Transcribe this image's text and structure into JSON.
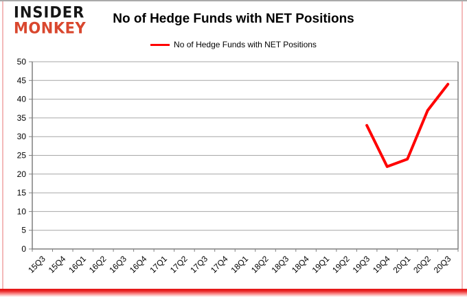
{
  "brand": {
    "name_line1": "INSIDER",
    "name_line2": "MONKEY",
    "monkey_color": "#d9472e"
  },
  "title": "No of Hedge Funds with NET Positions",
  "legend": {
    "label": "No of Hedge Funds with NET Positions",
    "color": "#ff0000"
  },
  "chart_data": {
    "type": "line",
    "title": "No of Hedge Funds with NET Positions",
    "categories": [
      "15Q3",
      "15Q4",
      "16Q1",
      "16Q2",
      "16Q3",
      "16Q4",
      "17Q1",
      "17Q2",
      "17Q3",
      "17Q4",
      "18Q1",
      "18Q2",
      "18Q3",
      "18Q4",
      "19Q1",
      "19Q2",
      "19Q3",
      "19Q4",
      "20Q1",
      "20Q2",
      "20Q3"
    ],
    "series": [
      {
        "name": "No of Hedge Funds with NET Positions",
        "color": "#ff0000",
        "values": [
          null,
          null,
          null,
          null,
          null,
          null,
          null,
          null,
          null,
          null,
          null,
          null,
          null,
          null,
          null,
          null,
          33,
          22,
          24,
          37,
          44
        ]
      }
    ],
    "xlabel": "",
    "ylabel": "",
    "ylim": [
      0,
      50
    ],
    "ytick_interval": 5,
    "y_ticks": [
      0,
      5,
      10,
      15,
      20,
      25,
      30,
      35,
      40,
      45,
      50
    ],
    "grid": true,
    "legend_position": "top-center"
  },
  "colors": {
    "gridline": "#a6a6a6",
    "axis": "#7f7f7f",
    "background": "#ffffff"
  }
}
